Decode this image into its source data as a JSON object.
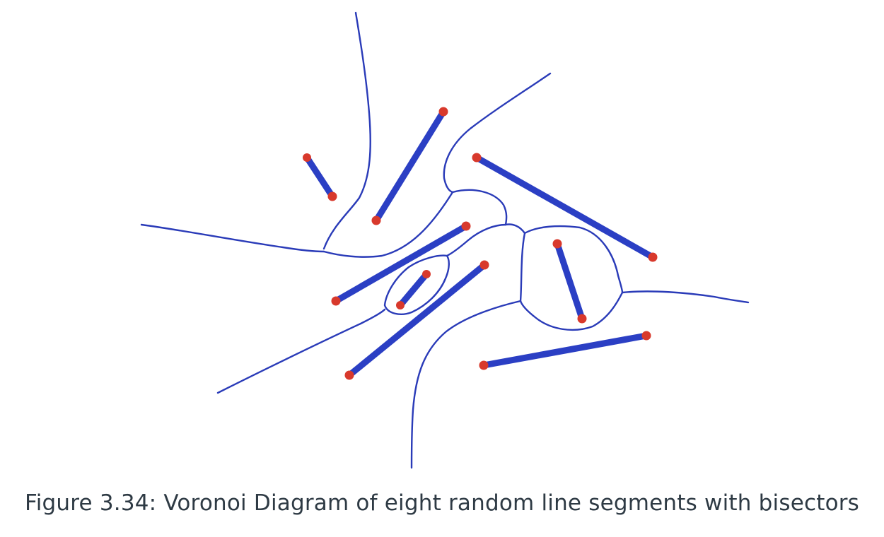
{
  "figure": {
    "label": "Figure 3.34:",
    "caption": "Voronoi Diagram of eight random line segments with bisectors"
  },
  "colors": {
    "segment": "#2b3fc4",
    "bisector": "#2a3bb8",
    "endpoint": "#d8392c",
    "caption": "#2e3a44"
  },
  "diagram": {
    "segment_count": 8
  }
}
